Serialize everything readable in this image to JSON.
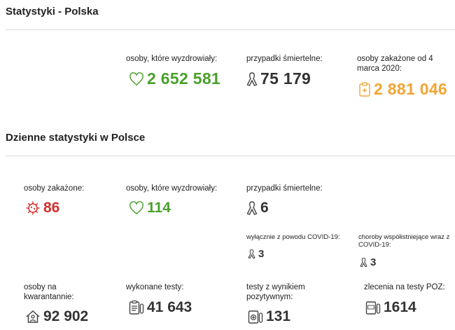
{
  "colors": {
    "green": "#4aa02c",
    "orange": "#f1a533",
    "red": "#d32f2f",
    "dark": "#333333"
  },
  "overall": {
    "title": "Statystyki - Polska",
    "recovered": {
      "label": "osoby, które wyzdrowiały:",
      "value": "2 652 581",
      "icon": "heart-icon"
    },
    "deaths": {
      "label": "przypadki śmiertelne:",
      "value": "75 179",
      "icon": "ribbon-icon"
    },
    "infected": {
      "label": "osoby zakażone od 4 marca 2020:",
      "value": "2 881 046",
      "icon": "clipboard-plus-icon"
    }
  },
  "daily": {
    "title": "Dzienne statystyki w Polsce",
    "infected": {
      "label": "osoby zakażone:",
      "value": "86",
      "icon": "virus-icon"
    },
    "recovered": {
      "label": "osoby, które wyzdrowiały:",
      "value": "114",
      "icon": "heart-icon"
    },
    "deaths": {
      "label": "przypadki śmiertelne:",
      "value": "6",
      "icon": "ribbon-icon"
    },
    "covid_only": {
      "label": "wyłącznie z powodu COVID-19:",
      "value": "3",
      "icon": "ribbon-icon"
    },
    "comorbid": {
      "label": "choroby współistniejące wraz z COVID-19:",
      "value": "3",
      "icon": "ribbon-icon"
    },
    "quarantine": {
      "label": "osoby na kwarantannie:",
      "value": "92 902",
      "icon": "house-person-icon"
    },
    "tests": {
      "label": "wykonane testy:",
      "value": "41 643",
      "icon": "clipboard-test-icon"
    },
    "positive_tests": {
      "label": "testy z wynikiem pozytywnym:",
      "value": "131",
      "icon": "test-positive-icon"
    },
    "poz_orders": {
      "label": "zlecenia na testy POZ:",
      "value": "1614",
      "icon": "poz-test-icon"
    }
  }
}
